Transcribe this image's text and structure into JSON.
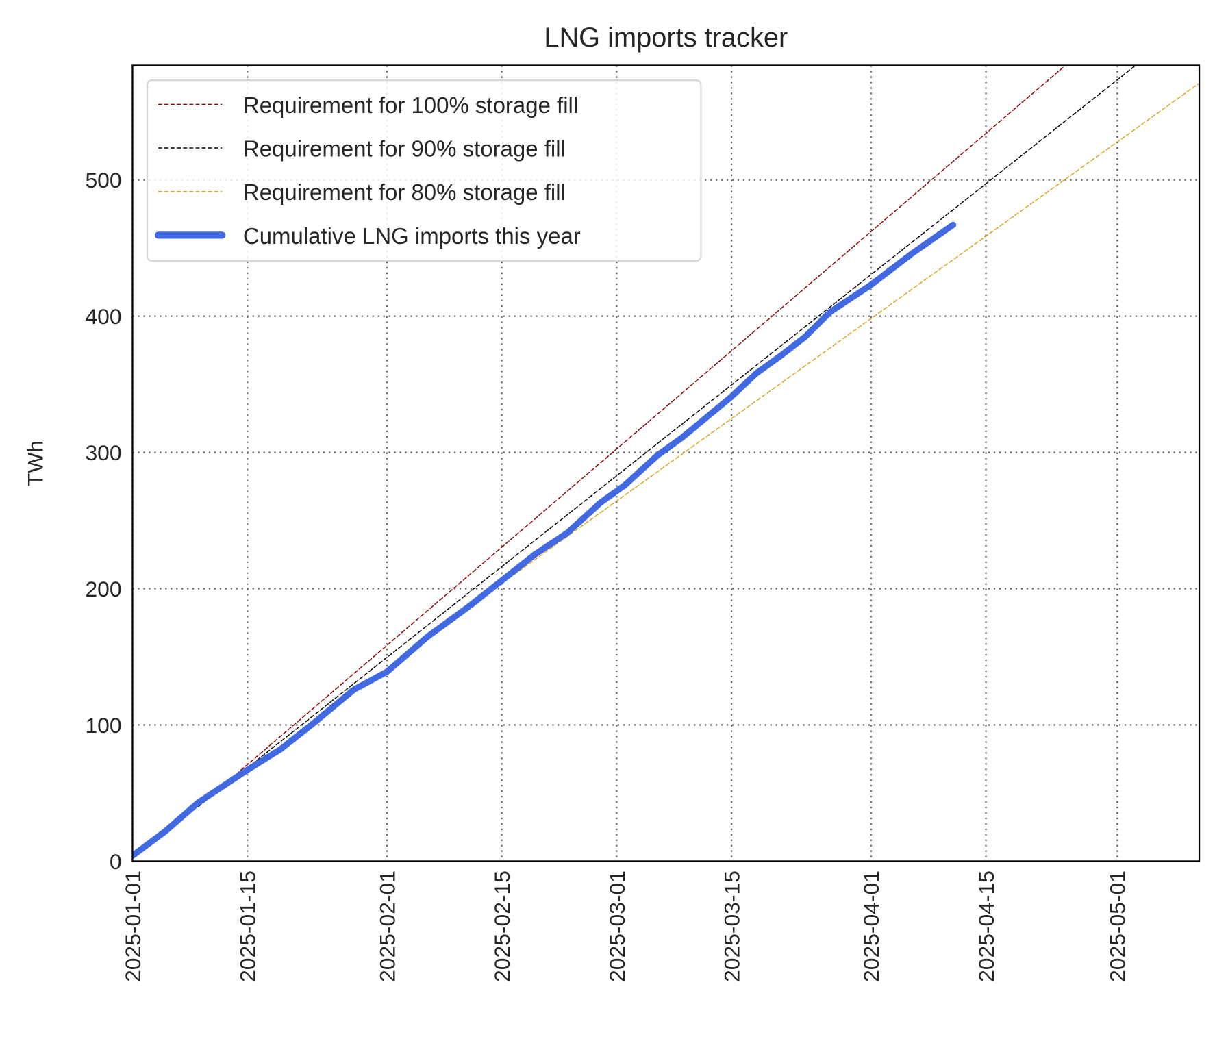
{
  "chart_data": {
    "type": "line",
    "title": "LNG imports tracker",
    "xlabel": "",
    "ylabel": "TWh",
    "xlim": [
      "2025-01-01",
      "2025-05-11"
    ],
    "ylim": [
      0,
      584
    ],
    "grid": true,
    "legend_position": "top-left",
    "x_ticks": [
      "2025-01-01",
      "2025-01-15",
      "2025-02-01",
      "2025-02-15",
      "2025-03-01",
      "2025-03-15",
      "2025-04-01",
      "2025-04-15",
      "2025-05-01"
    ],
    "y_ticks": [
      0,
      100,
      200,
      300,
      400,
      500
    ],
    "series": [
      {
        "name": "Requirement for 100% storage fill",
        "color": "#8b0000",
        "style": "dashed",
        "x": [
          "2025-01-09",
          "2025-05-11"
        ],
        "y": [
          40,
          668
        ]
      },
      {
        "name": "Requirement for 90% storage fill",
        "color": "#000000",
        "style": "dashed",
        "x": [
          "2025-01-09",
          "2025-05-11"
        ],
        "y": [
          40,
          621
        ]
      },
      {
        "name": "Requirement for 80% storage fill",
        "color": "#daa520",
        "style": "dashed",
        "x": [
          "2025-02-06",
          "2025-05-11"
        ],
        "y": [
          165,
          571
        ]
      },
      {
        "name": "Cumulative LNG imports this year",
        "color": "#4169e1",
        "style": "solid",
        "x": [
          "2025-01-01",
          "2025-01-05",
          "2025-01-09",
          "2025-01-12",
          "2025-01-15",
          "2025-01-19",
          "2025-01-23",
          "2025-01-28",
          "2025-02-01",
          "2025-02-06",
          "2025-02-11",
          "2025-02-15",
          "2025-02-19",
          "2025-02-23",
          "2025-02-27",
          "2025-03-02",
          "2025-03-06",
          "2025-03-09",
          "2025-03-15",
          "2025-03-18",
          "2025-03-21",
          "2025-03-24",
          "2025-03-27",
          "2025-04-01",
          "2025-04-06",
          "2025-04-11"
        ],
        "y": [
          4,
          22,
          43,
          55,
          67,
          82,
          101,
          126,
          139,
          165,
          187,
          206,
          225,
          241,
          263,
          276,
          298,
          311,
          341,
          358,
          371,
          385,
          403,
          423,
          446,
          467
        ]
      }
    ]
  }
}
